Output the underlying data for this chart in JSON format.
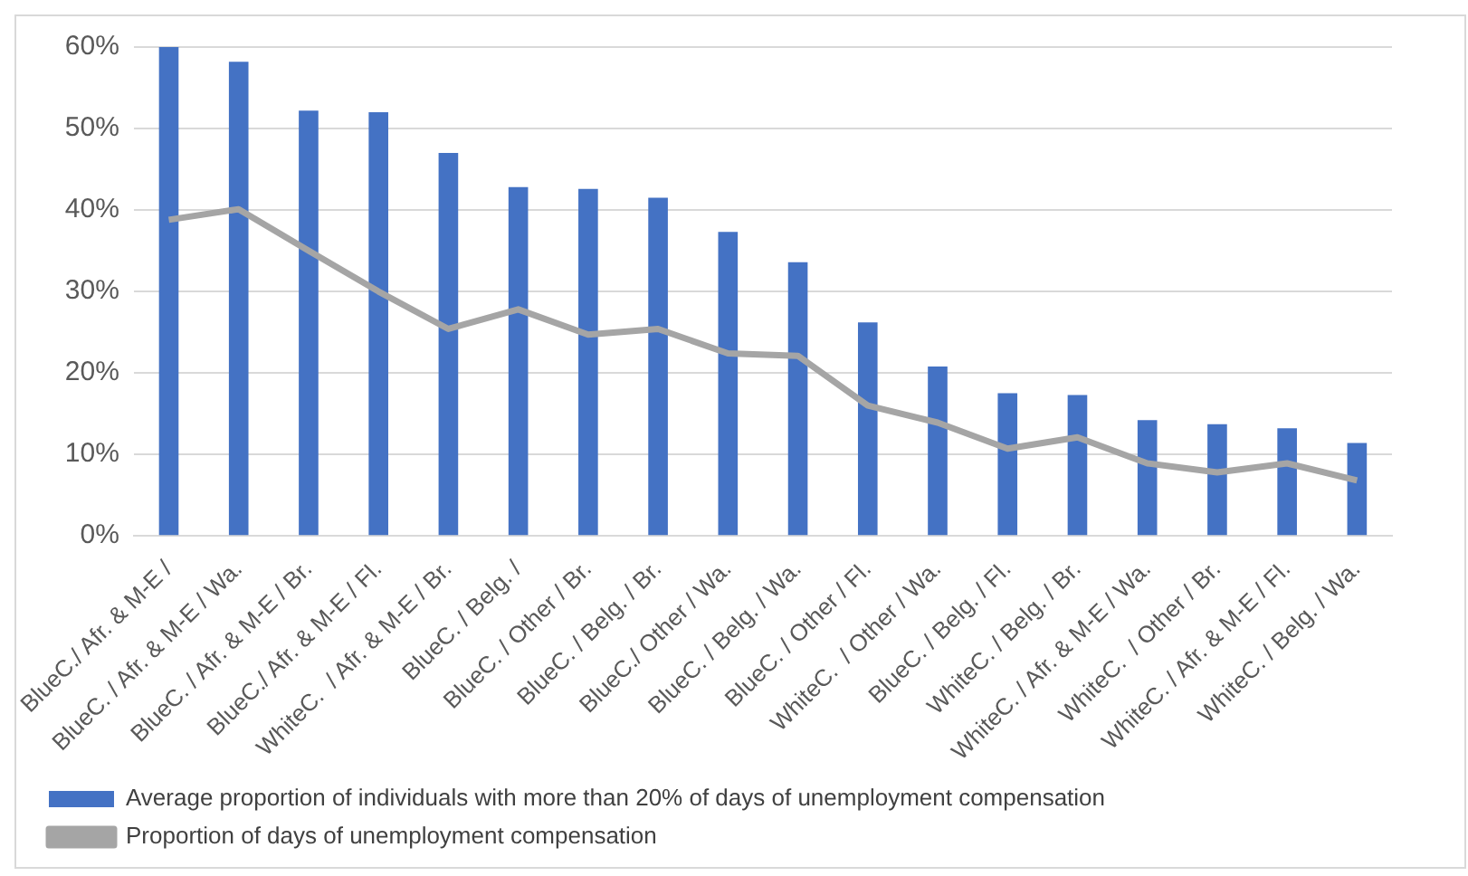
{
  "chart_data": {
    "type": "bar",
    "categories": [
      "BlueC./ Afr. & M-E /",
      "BlueC. / Afr. & M-E / Wa.",
      "BlueC. / Afr. & M-E / Br.",
      "BlueC./ Afr. & M-E / Fl.",
      "WhiteC.  / Afr. & M-E / Br.",
      "BlueC. / Belg. /",
      "BlueC. / Other / Br.",
      "BlueC. / Belg. / Br.",
      "BlueC./ Other / Wa.",
      "BlueC. / Belg. / Wa.",
      "BlueC. / Other / Fl.",
      "WhiteC.  / Other / Wa.",
      "BlueC. / Belg. / Fl.",
      "WhiteC. / Belg. / Br.",
      "WhiteC. / Afr. & M-E / Wa.",
      "WhiteC.  / Other / Br.",
      "WhiteC. / Afr. & M-E / Fl.",
      "WhiteC. / Belg. / Wa."
    ],
    "series": [
      {
        "name": "Average proportion of individuals with more than 20% of days of unemployment compensation",
        "color": "#4472c4",
        "values": [
          60.0,
          58.2,
          52.2,
          52.0,
          47.0,
          42.8,
          42.6,
          41.5,
          37.3,
          33.6,
          26.2,
          20.8,
          17.5,
          17.3,
          14.2,
          13.7,
          13.2,
          11.4
        ]
      },
      {
        "name": "Proportion of days of unemployment compensation",
        "type": "line",
        "color": "#a5a5a5",
        "values": [
          38.8,
          40.1,
          35.0,
          30.0,
          25.4,
          27.8,
          24.7,
          25.4,
          22.4,
          22.1,
          16.0,
          13.9,
          10.7,
          12.1,
          8.9,
          7.8,
          8.9,
          6.8
        ]
      }
    ],
    "ylim": [
      0,
      60
    ],
    "yticks": [
      {
        "value": 0,
        "label": "0%"
      },
      {
        "value": 10,
        "label": "10%"
      },
      {
        "value": 20,
        "label": "20%"
      },
      {
        "value": 30,
        "label": "30%"
      },
      {
        "value": 40,
        "label": "40%"
      },
      {
        "value": 50,
        "label": "50%"
      },
      {
        "value": 60,
        "label": "60%"
      }
    ],
    "grid": "y",
    "legend": "bottom",
    "marker": "none",
    "line_style": "solid"
  }
}
